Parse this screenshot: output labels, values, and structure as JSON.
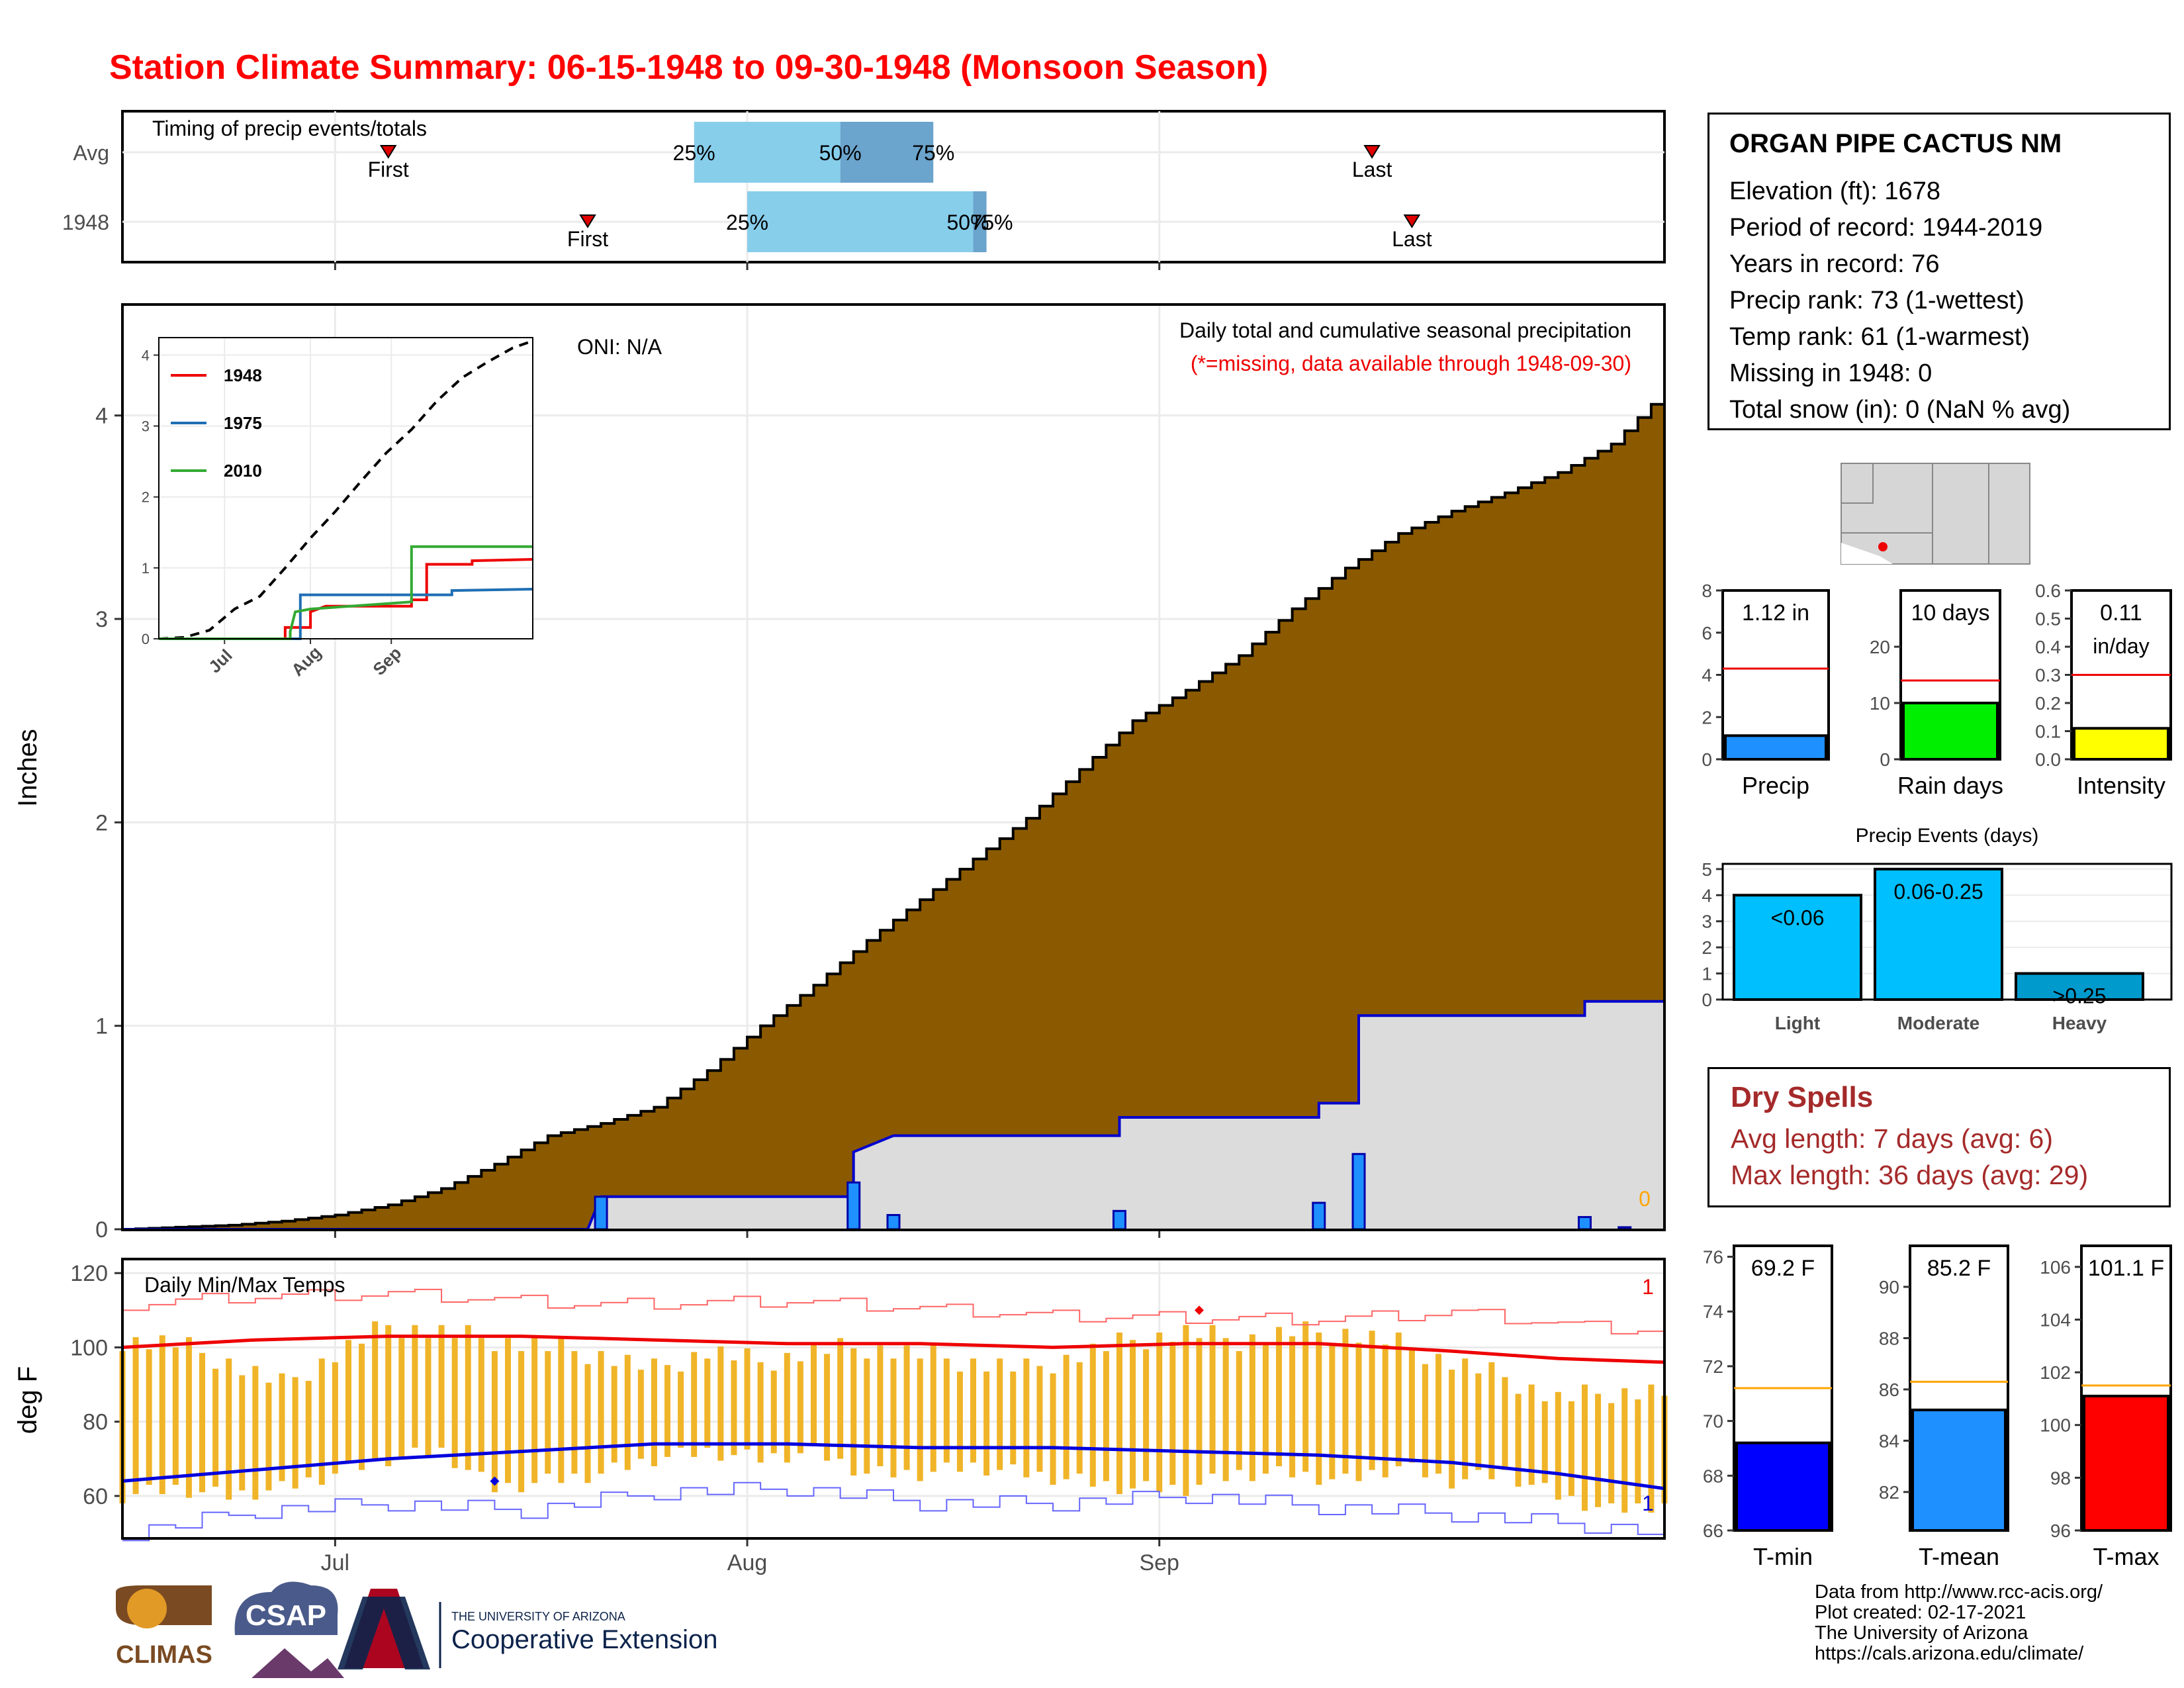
{
  "title": "Station Climate Summary: 06-15-1948 to 09-30-1948 (Monsoon Season)",
  "station": {
    "name": "ORGAN PIPE CACTUS NM",
    "lines": [
      "Elevation (ft): 1678",
      "Period of record: 1944-2019",
      "Years in record: 76",
      "Precip rank: 73 (1-wettest)",
      "Temp rank: 61 (1-warmest)",
      "Missing in 1948: 0",
      "Total snow (in): 0 (NaN % avg)"
    ]
  },
  "dry_spells": {
    "title": "Dry Spells",
    "avg": "Avg length: 7 days (avg: 6)",
    "max": "Max length: 36 days (avg: 29)"
  },
  "credits": [
    "Data from http://www.rcc-acis.org/",
    "Plot created: 02-17-2021",
    "The University of Arizona",
    "https://cals.arizona.edu/climate/"
  ],
  "logos": {
    "climas": "CLIMAS",
    "csap": "CSAP",
    "ua_small": "THE UNIVERSITY OF ARIZONA",
    "ua_big": "Cooperative Extension"
  },
  "colors": {
    "cumulative_avg": "#8b5a00",
    "cumulative_obs": "#dcdcdc",
    "daily_precip": "#1e90ff",
    "obs_line": "#0000cd",
    "timing_light": "#87ceeb",
    "timing_dark": "#6ba4cc",
    "temp_bars": "#f0b428",
    "tmax_line": "#ee0000",
    "tmin_line": "#0000dd",
    "light_events": "#00bfff",
    "heavy_events": "#009acd",
    "intensity": "#ffff00",
    "rain_days": "#00ee00"
  },
  "axes": {
    "month_ticks": [
      "Jul",
      "Aug",
      "Sep"
    ],
    "precip_ylabel": "Inches",
    "temp_ylabel": "deg F",
    "precip_yticks": [
      0,
      1,
      2,
      3,
      4
    ],
    "temp_yticks": [
      60,
      80,
      100,
      120
    ]
  },
  "chart_data": [
    {
      "type": "bar",
      "name": "timing",
      "title": "Timing of precip events/totals",
      "categories": [
        "Avg",
        "1948"
      ],
      "x_domain": [
        "06-15",
        "09-30"
      ],
      "series": [
        {
          "name": "Avg",
          "first": "07-05",
          "q25": "07-28",
          "q50": "08-08",
          "q75": "08-15",
          "last": "09-17"
        },
        {
          "name": "1948",
          "first": "07-20",
          "q25": "08-01",
          "q50": "08-18",
          "q75": "08-19",
          "last": "09-20"
        }
      ],
      "labels": {
        "first": "First",
        "last": "Last",
        "q25": "25%",
        "q50": "50%",
        "q75": "75%"
      }
    },
    {
      "type": "area",
      "name": "cumulative_precip",
      "title": "Daily total and cumulative seasonal precipitation",
      "subtitle": "(*=missing, data available through 1948-09-30)",
      "oni": "ONI: N/A",
      "ylabel": "Inches",
      "ylim": [
        0,
        4.5
      ],
      "x_domain": [
        "06-15",
        "09-30"
      ],
      "end_label": "0",
      "avg_cumulative": [
        [
          0,
          0
        ],
        [
          4,
          0.01
        ],
        [
          8,
          0.02
        ],
        [
          12,
          0.04
        ],
        [
          16,
          0.07
        ],
        [
          20,
          0.12
        ],
        [
          24,
          0.2
        ],
        [
          28,
          0.32
        ],
        [
          32,
          0.46
        ],
        [
          36,
          0.52
        ],
        [
          40,
          0.6
        ],
        [
          44,
          0.78
        ],
        [
          48,
          1.0
        ],
        [
          52,
          1.2
        ],
        [
          56,
          1.42
        ],
        [
          60,
          1.62
        ],
        [
          64,
          1.82
        ],
        [
          68,
          2.02
        ],
        [
          72,
          2.26
        ],
        [
          76,
          2.5
        ],
        [
          80,
          2.65
        ],
        [
          84,
          2.82
        ],
        [
          88,
          3.05
        ],
        [
          92,
          3.25
        ],
        [
          96,
          3.42
        ],
        [
          100,
          3.53
        ],
        [
          104,
          3.62
        ],
        [
          108,
          3.72
        ],
        [
          112,
          3.86
        ],
        [
          116,
          4.12
        ]
      ],
      "obs_cumulative": [
        [
          0,
          0
        ],
        [
          35,
          0
        ],
        [
          36,
          0.16
        ],
        [
          55,
          0.16
        ],
        [
          55,
          0.38
        ],
        [
          58,
          0.46
        ],
        [
          75,
          0.46
        ],
        [
          75,
          0.55
        ],
        [
          90,
          0.55
        ],
        [
          90,
          0.62
        ],
        [
          93,
          0.62
        ],
        [
          93,
          1.05
        ],
        [
          110,
          1.05
        ],
        [
          110,
          1.12
        ],
        [
          113,
          1.12
        ],
        [
          116,
          1.12
        ]
      ],
      "daily_precip": [
        [
          36,
          0.16
        ],
        [
          55,
          0.23
        ],
        [
          58,
          0.07
        ],
        [
          75,
          0.09
        ],
        [
          90,
          0.13
        ],
        [
          93,
          0.37
        ],
        [
          110,
          0.06
        ],
        [
          113,
          0.01
        ]
      ],
      "inset": {
        "type": "line",
        "ylim": [
          0,
          4.2
        ],
        "xticks": [
          "Jul",
          "Aug",
          "Sep"
        ],
        "avg": [
          [
            0,
            0
          ],
          [
            5,
            0.02
          ],
          [
            10,
            0.12
          ],
          [
            15,
            0.42
          ],
          [
            20,
            0.6
          ],
          [
            25,
            1.0
          ],
          [
            30,
            1.42
          ],
          [
            35,
            1.8
          ],
          [
            40,
            2.22
          ],
          [
            45,
            2.62
          ],
          [
            50,
            2.95
          ],
          [
            55,
            3.35
          ],
          [
            60,
            3.68
          ],
          [
            65,
            3.9
          ],
          [
            70,
            4.1
          ],
          [
            74,
            4.2
          ]
        ],
        "series": [
          {
            "name": "1948",
            "color": "#ee0000",
            "values": [
              [
                0,
                0
              ],
              [
                25,
                0
              ],
              [
                25,
                0.16
              ],
              [
                30,
                0.16
              ],
              [
                30,
                0.38
              ],
              [
                33,
                0.46
              ],
              [
                50,
                0.46
              ],
              [
                50,
                0.55
              ],
              [
                53,
                0.55
              ],
              [
                53,
                1.05
              ],
              [
                62,
                1.05
              ],
              [
                62,
                1.1
              ],
              [
                74,
                1.12
              ]
            ]
          },
          {
            "name": "1975",
            "color": "#1f6fb4",
            "values": [
              [
                0,
                0
              ],
              [
                28,
                0
              ],
              [
                28,
                0.62
              ],
              [
                58,
                0.62
              ],
              [
                58,
                0.68
              ],
              [
                74,
                0.7
              ]
            ]
          },
          {
            "name": "2010",
            "color": "#33aa33",
            "values": [
              [
                0,
                0
              ],
              [
                26,
                0
              ],
              [
                26,
                0.1
              ],
              [
                27,
                0.38
              ],
              [
                30,
                0.42
              ],
              [
                50,
                0.52
              ],
              [
                50,
                1.3
              ],
              [
                74,
                1.3
              ]
            ]
          }
        ]
      }
    },
    {
      "type": "line",
      "name": "daily_temps",
      "title": "Daily Min/Max Temps",
      "ylabel": "deg F",
      "ylim": [
        50,
        122
      ],
      "end_label_max": "1",
      "end_label_min": "1",
      "tmax_avg": [
        [
          0,
          100
        ],
        [
          10,
          102
        ],
        [
          20,
          103
        ],
        [
          30,
          103
        ],
        [
          40,
          102
        ],
        [
          50,
          101
        ],
        [
          60,
          101
        ],
        [
          70,
          100
        ],
        [
          80,
          101
        ],
        [
          90,
          101
        ],
        [
          100,
          99
        ],
        [
          108,
          97
        ],
        [
          116,
          96
        ]
      ],
      "tmin_avg": [
        [
          0,
          64
        ],
        [
          10,
          67
        ],
        [
          20,
          70
        ],
        [
          30,
          72
        ],
        [
          40,
          74
        ],
        [
          50,
          74
        ],
        [
          60,
          73
        ],
        [
          70,
          73
        ],
        [
          80,
          72
        ],
        [
          90,
          71
        ],
        [
          100,
          69
        ],
        [
          108,
          66
        ],
        [
          116,
          62
        ]
      ],
      "record_max": [
        [
          0,
          112
        ],
        [
          8,
          114
        ],
        [
          20,
          115
        ],
        [
          35,
          112
        ],
        [
          50,
          113
        ],
        [
          70,
          109
        ],
        [
          90,
          108
        ],
        [
          100,
          110
        ],
        [
          110,
          106
        ],
        [
          116,
          105
        ]
      ],
      "record_min": [
        [
          0,
          50
        ],
        [
          10,
          56
        ],
        [
          20,
          58
        ],
        [
          30,
          56
        ],
        [
          40,
          61
        ],
        [
          50,
          62
        ],
        [
          60,
          58
        ],
        [
          70,
          58
        ],
        [
          80,
          60
        ],
        [
          90,
          57
        ],
        [
          100,
          55
        ],
        [
          110,
          52
        ],
        [
          116,
          50
        ]
      ],
      "bars": [
        [
          0,
          60,
          102
        ],
        [
          4,
          62,
          101
        ],
        [
          8,
          60,
          96
        ],
        [
          12,
          62,
          90
        ],
        [
          16,
          66,
          98
        ],
        [
          20,
          70,
          106
        ],
        [
          24,
          72,
          104
        ],
        [
          28,
          62,
          102
        ],
        [
          32,
          64,
          100
        ],
        [
          36,
          66,
          98
        ],
        [
          40,
          70,
          94
        ],
        [
          44,
          72,
          99
        ],
        [
          48,
          70,
          96
        ],
        [
          52,
          72,
          99
        ],
        [
          56,
          66,
          100
        ],
        [
          60,
          66,
          98
        ],
        [
          64,
          68,
          96
        ],
        [
          68,
          66,
          94
        ],
        [
          72,
          64,
          98
        ],
        [
          76,
          62,
          102
        ],
        [
          80,
          62,
          104
        ],
        [
          84,
          66,
          102
        ],
        [
          88,
          66,
          104
        ],
        [
          92,
          64,
          104
        ],
        [
          96,
          68,
          101
        ],
        [
          100,
          64,
          96
        ],
        [
          104,
          66,
          92
        ],
        [
          108,
          60,
          86
        ],
        [
          112,
          56,
          88
        ],
        [
          116,
          58,
          88
        ]
      ],
      "marks": [
        {
          "day": 28,
          "value": 64,
          "color": "#0000dd"
        },
        {
          "day": 81,
          "value": 110,
          "color": "#ee0000"
        }
      ]
    },
    {
      "type": "bar",
      "name": "season_totals",
      "panels": [
        {
          "label": "Precip",
          "value": 1.12,
          "value_label": "1.12 in",
          "avg": 4.3,
          "ylim": [
            0,
            8
          ],
          "yticks": [
            0,
            2,
            4,
            6,
            8
          ],
          "color": "#1e90ff"
        },
        {
          "label": "Rain days",
          "value": 10,
          "value_label": "10 days",
          "avg": 14,
          "ylim": [
            0,
            30
          ],
          "yticks": [
            0,
            10,
            20
          ],
          "color": "#00ee00"
        },
        {
          "label": "Intensity",
          "value": 0.11,
          "value_label": "0.11",
          "value_unit": "in/day",
          "avg": 0.3,
          "ylim": [
            0,
            0.6
          ],
          "yticks": [
            0.0,
            0.1,
            0.2,
            0.3,
            0.4,
            0.5,
            0.6
          ],
          "color": "#ffff00"
        }
      ]
    },
    {
      "type": "bar",
      "name": "precip_events",
      "title": "Precip Events (days)",
      "categories": [
        "Light",
        "Moderate",
        "Heavy"
      ],
      "values": [
        4,
        5,
        1
      ],
      "bar_labels": [
        "<0.06",
        "0.06-0.25",
        ">0.25"
      ],
      "ylim": [
        0,
        5.2
      ],
      "yticks": [
        0,
        1,
        2,
        3,
        4,
        5
      ]
    },
    {
      "type": "bar",
      "name": "temp_means",
      "panels": [
        {
          "label": "T-min",
          "value": 69.2,
          "value_label": "69.2 F",
          "avg": 71.2,
          "ylim": [
            66,
            76.4
          ],
          "yticks": [
            66,
            68,
            70,
            72,
            74,
            76
          ],
          "color": "#0000ff"
        },
        {
          "label": "T-mean",
          "value": 85.2,
          "value_label": "85.2 F",
          "avg": 86.3,
          "ylim": [
            80.5,
            91.6
          ],
          "yticks": [
            82,
            84,
            86,
            88,
            90
          ],
          "color": "#1e90ff"
        },
        {
          "label": "T-max",
          "value": 101.1,
          "value_label": "101.1 F",
          "avg": 101.5,
          "ylim": [
            96,
            106.8
          ],
          "yticks": [
            96,
            98,
            100,
            102,
            104,
            106
          ],
          "color": "#ff0000"
        }
      ]
    }
  ]
}
